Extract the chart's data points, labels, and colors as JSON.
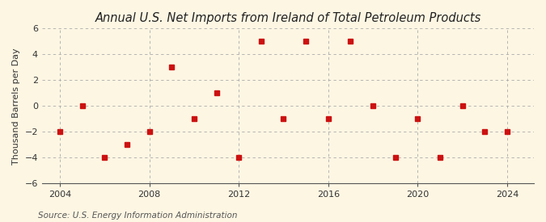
{
  "title": "Annual U.S. Net Imports from Ireland of Total Petroleum Products",
  "ylabel": "Thousand Barrels per Day",
  "source": "Source: U.S. Energy Information Administration",
  "background_color": "#fdf6e3",
  "plot_bg_color": "#fdf6e3",
  "years": [
    2004,
    2005,
    2006,
    2007,
    2008,
    2009,
    2010,
    2011,
    2012,
    2013,
    2014,
    2015,
    2016,
    2017,
    2018,
    2019,
    2020,
    2021,
    2022,
    2023,
    2024
  ],
  "values": [
    -2,
    0,
    -4,
    -3,
    -2,
    3,
    -1,
    1,
    -4,
    5,
    -1,
    5,
    -1,
    5,
    0,
    -4,
    -1,
    -4,
    0,
    -2,
    -2
  ],
  "marker_color": "#cc1111",
  "marker_size": 5,
  "ylim": [
    -6,
    6
  ],
  "yticks": [
    -6,
    -4,
    -2,
    0,
    2,
    4,
    6
  ],
  "xlim": [
    2003.2,
    2025.2
  ],
  "xticks": [
    2004,
    2008,
    2012,
    2016,
    2020,
    2024
  ],
  "grid_color": "#aaaaaa",
  "vgrid_xticks": [
    2004,
    2008,
    2012,
    2016,
    2020,
    2024
  ],
  "title_fontsize": 10.5,
  "label_fontsize": 8,
  "tick_fontsize": 8,
  "source_fontsize": 7.5
}
